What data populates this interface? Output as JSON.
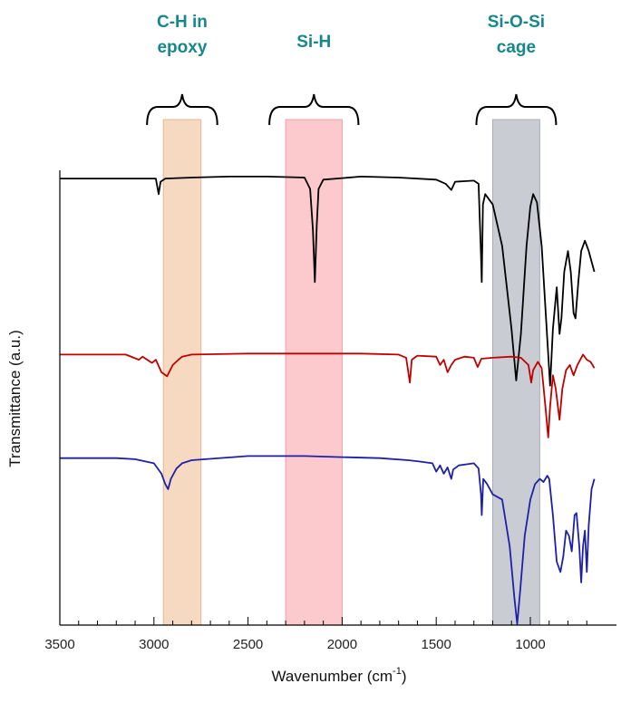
{
  "chart_data": {
    "type": "line",
    "xlabel": "Wavenumber (cm",
    "xlabel_superscript": "-1",
    "xlabel_suffix": ")",
    "ylabel": "Transmittance (a.u.)",
    "xlim": [
      3500,
      650
    ],
    "x_reversed": true,
    "x_ticks": [
      3500,
      3000,
      2500,
      2000,
      1500,
      1000
    ],
    "y_ticks_shown": false,
    "grid": false,
    "legend": "none",
    "colors": {
      "region_label": "#17878c",
      "ch_band": "#f5d9c0",
      "sih_band": "#fcc9cc",
      "siosi_band": "#c9cdd3",
      "axis": "#000000"
    },
    "highlight_regions": [
      {
        "label_lines": [
          "C-H in",
          "epoxy"
        ],
        "x_range": [
          2950,
          2750
        ]
      },
      {
        "label_lines": [
          "Si-H"
        ],
        "x_range": [
          2300,
          2000
        ]
      },
      {
        "label_lines": [
          "Si-O-Si",
          "cage"
        ],
        "x_range": [
          1200,
          950
        ]
      }
    ],
    "series": [
      {
        "color": "#000000",
        "baseline": 2.85,
        "points": [
          [
            3500,
            2.85
          ],
          [
            3300,
            2.85
          ],
          [
            3100,
            2.85
          ],
          [
            2990,
            2.85
          ],
          [
            2975,
            2.7
          ],
          [
            2965,
            2.82
          ],
          [
            2940,
            2.85
          ],
          [
            2800,
            2.86
          ],
          [
            2600,
            2.87
          ],
          [
            2400,
            2.87
          ],
          [
            2200,
            2.86
          ],
          [
            2170,
            2.75
          ],
          [
            2155,
            2.35
          ],
          [
            2145,
            1.85
          ],
          [
            2135,
            2.4
          ],
          [
            2125,
            2.75
          ],
          [
            2100,
            2.84
          ],
          [
            1900,
            2.87
          ],
          [
            1700,
            2.86
          ],
          [
            1500,
            2.84
          ],
          [
            1450,
            2.8
          ],
          [
            1420,
            2.74
          ],
          [
            1400,
            2.82
          ],
          [
            1300,
            2.83
          ],
          [
            1275,
            2.8
          ],
          [
            1262,
            2.1
          ],
          [
            1258,
            1.85
          ],
          [
            1252,
            2.6
          ],
          [
            1240,
            2.7
          ],
          [
            1200,
            2.6
          ],
          [
            1150,
            2.2
          ],
          [
            1100,
            1.4
          ],
          [
            1075,
            0.9
          ],
          [
            1050,
            1.35
          ],
          [
            1020,
            2.2
          ],
          [
            1000,
            2.58
          ],
          [
            985,
            2.7
          ],
          [
            965,
            2.62
          ],
          [
            940,
            2.2
          ],
          [
            910,
            1.3
          ],
          [
            895,
            0.85
          ],
          [
            880,
            1.4
          ],
          [
            860,
            1.8
          ],
          [
            845,
            1.35
          ],
          [
            835,
            1.5
          ],
          [
            820,
            1.95
          ],
          [
            800,
            2.15
          ],
          [
            785,
            1.95
          ],
          [
            770,
            1.55
          ],
          [
            760,
            1.5
          ],
          [
            745,
            1.85
          ],
          [
            730,
            2.15
          ],
          [
            710,
            2.25
          ],
          [
            690,
            2.15
          ],
          [
            675,
            2.05
          ],
          [
            660,
            1.95
          ]
        ]
      },
      {
        "color": "#c00000",
        "baseline": 1.15,
        "points": [
          [
            3500,
            1.15
          ],
          [
            3150,
            1.15
          ],
          [
            3080,
            1.1
          ],
          [
            3060,
            1.13
          ],
          [
            3010,
            1.07
          ],
          [
            2990,
            1.1
          ],
          [
            2960,
            0.98
          ],
          [
            2930,
            0.94
          ],
          [
            2900,
            1.05
          ],
          [
            2870,
            1.1
          ],
          [
            2850,
            1.13
          ],
          [
            2800,
            1.15
          ],
          [
            2500,
            1.16
          ],
          [
            2200,
            1.16
          ],
          [
            1900,
            1.16
          ],
          [
            1700,
            1.15
          ],
          [
            1660,
            1.12
          ],
          [
            1640,
            0.88
          ],
          [
            1630,
            1.1
          ],
          [
            1600,
            1.14
          ],
          [
            1500,
            1.13
          ],
          [
            1480,
            1.05
          ],
          [
            1460,
            1.1
          ],
          [
            1440,
            0.98
          ],
          [
            1420,
            1.05
          ],
          [
            1400,
            1.1
          ],
          [
            1350,
            1.13
          ],
          [
            1300,
            1.12
          ],
          [
            1280,
            1.03
          ],
          [
            1260,
            1.11
          ],
          [
            1200,
            1.12
          ],
          [
            1100,
            1.13
          ],
          [
            1050,
            1.12
          ],
          [
            1010,
            1.05
          ],
          [
            995,
            0.88
          ],
          [
            985,
            1.0
          ],
          [
            960,
            1.08
          ],
          [
            940,
            1.02
          ],
          [
            920,
            0.65
          ],
          [
            905,
            0.35
          ],
          [
            895,
            0.65
          ],
          [
            880,
            0.95
          ],
          [
            865,
            0.82
          ],
          [
            845,
            0.52
          ],
          [
            830,
            0.82
          ],
          [
            810,
            1.0
          ],
          [
            790,
            1.05
          ],
          [
            770,
            0.95
          ],
          [
            750,
            1.05
          ],
          [
            720,
            1.15
          ],
          [
            700,
            1.1
          ],
          [
            680,
            1.08
          ],
          [
            660,
            1.02
          ]
        ]
      },
      {
        "color": "#1f1fa8",
        "baseline": 0.15,
        "points": [
          [
            3500,
            0.15
          ],
          [
            3200,
            0.15
          ],
          [
            3100,
            0.14
          ],
          [
            3000,
            0.1
          ],
          [
            2960,
            0.0
          ],
          [
            2940,
            -0.1
          ],
          [
            2925,
            -0.15
          ],
          [
            2910,
            -0.05
          ],
          [
            2880,
            0.05
          ],
          [
            2850,
            0.1
          ],
          [
            2800,
            0.13
          ],
          [
            2500,
            0.17
          ],
          [
            2200,
            0.17
          ],
          [
            2000,
            0.16
          ],
          [
            1800,
            0.15
          ],
          [
            1650,
            0.13
          ],
          [
            1600,
            0.12
          ],
          [
            1520,
            0.1
          ],
          [
            1500,
            0.02
          ],
          [
            1480,
            0.08
          ],
          [
            1460,
            0.0
          ],
          [
            1440,
            0.06
          ],
          [
            1420,
            -0.05
          ],
          [
            1410,
            0.04
          ],
          [
            1380,
            0.08
          ],
          [
            1300,
            0.1
          ],
          [
            1275,
            0.05
          ],
          [
            1262,
            -0.2
          ],
          [
            1258,
            -0.4
          ],
          [
            1250,
            -0.05
          ],
          [
            1230,
            -0.1
          ],
          [
            1200,
            -0.2
          ],
          [
            1150,
            -0.25
          ],
          [
            1110,
            -0.7
          ],
          [
            1085,
            -1.2
          ],
          [
            1070,
            -1.45
          ],
          [
            1055,
            -1.15
          ],
          [
            1030,
            -0.6
          ],
          [
            1000,
            -0.25
          ],
          [
            975,
            -0.1
          ],
          [
            950,
            -0.05
          ],
          [
            930,
            -0.08
          ],
          [
            910,
            -0.02
          ],
          [
            900,
            -0.05
          ],
          [
            880,
            -0.4
          ],
          [
            860,
            -0.85
          ],
          [
            840,
            -0.95
          ],
          [
            825,
            -0.8
          ],
          [
            810,
            -0.55
          ],
          [
            795,
            -0.6
          ],
          [
            780,
            -0.75
          ],
          [
            765,
            -0.4
          ],
          [
            755,
            -0.38
          ],
          [
            740,
            -0.7
          ],
          [
            730,
            -1.05
          ],
          [
            720,
            -0.7
          ],
          [
            710,
            -0.55
          ],
          [
            700,
            -0.95
          ],
          [
            690,
            -0.5
          ],
          [
            675,
            -0.15
          ],
          [
            660,
            -0.05
          ]
        ]
      }
    ]
  }
}
